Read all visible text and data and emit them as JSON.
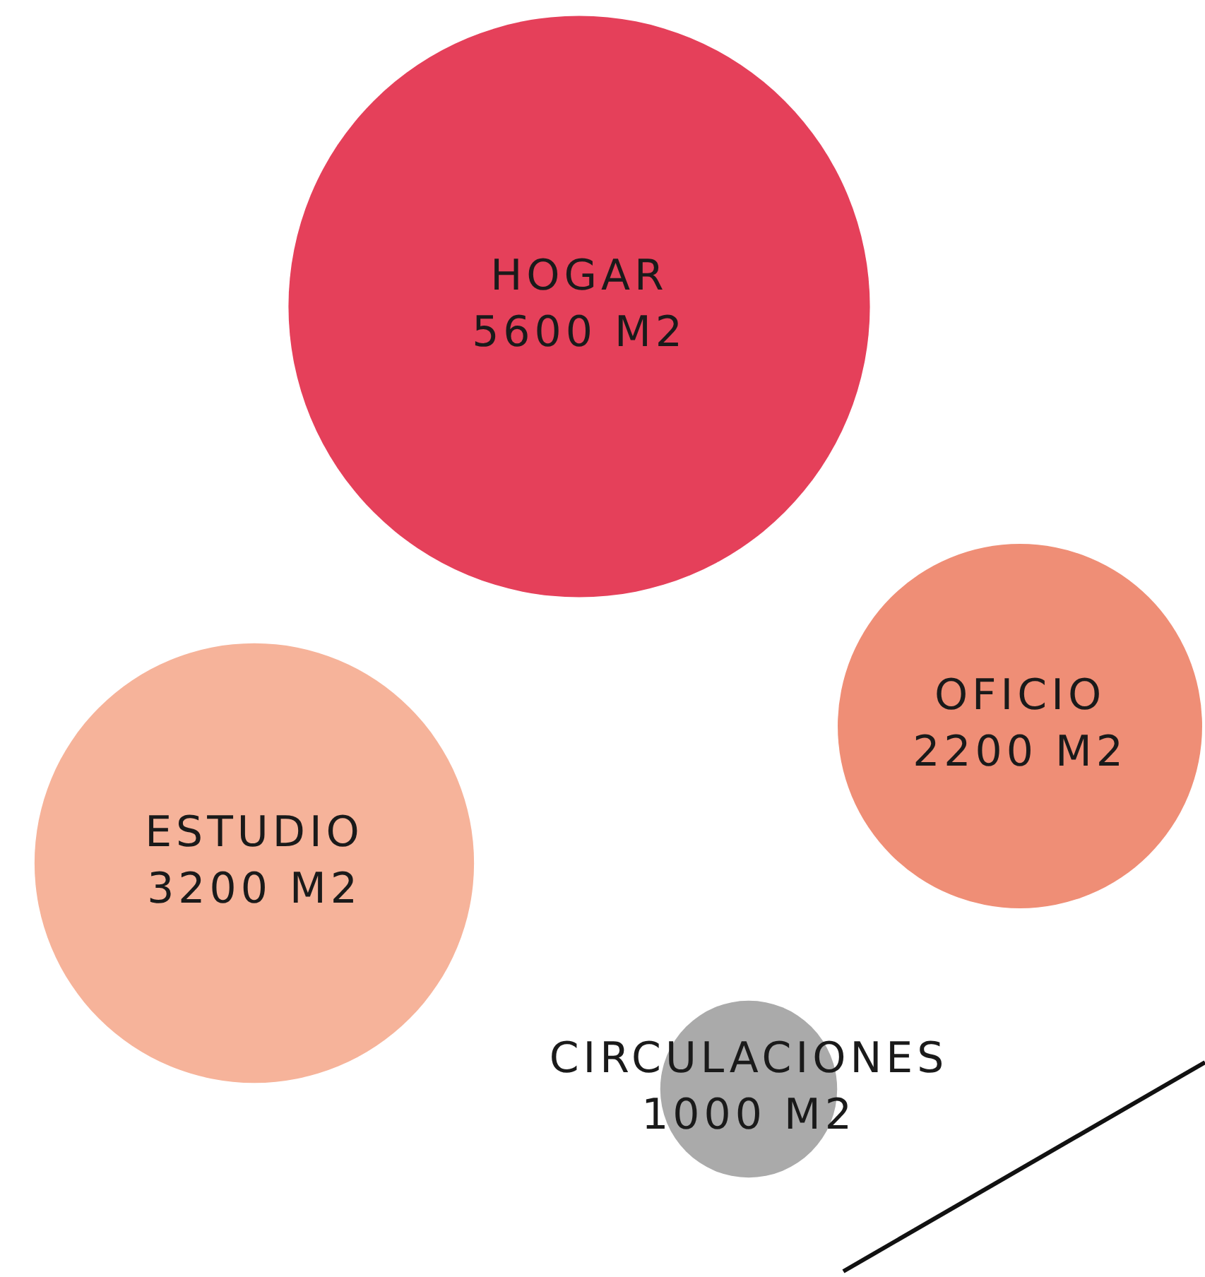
{
  "chart_data": {
    "type": "other",
    "categories": [
      "HOGAR",
      "OFICIO",
      "ESTUDIO",
      "CIRCULACIONES"
    ],
    "values": [
      5600,
      2200,
      3200,
      1000
    ],
    "value_labels": [
      "5600 M2",
      "2200 M2",
      "3200 M2",
      "1000 M2"
    ],
    "colors": [
      "#e5405a",
      "#ef8e76",
      "#f6b39a",
      "#aaaaaa"
    ]
  }
}
